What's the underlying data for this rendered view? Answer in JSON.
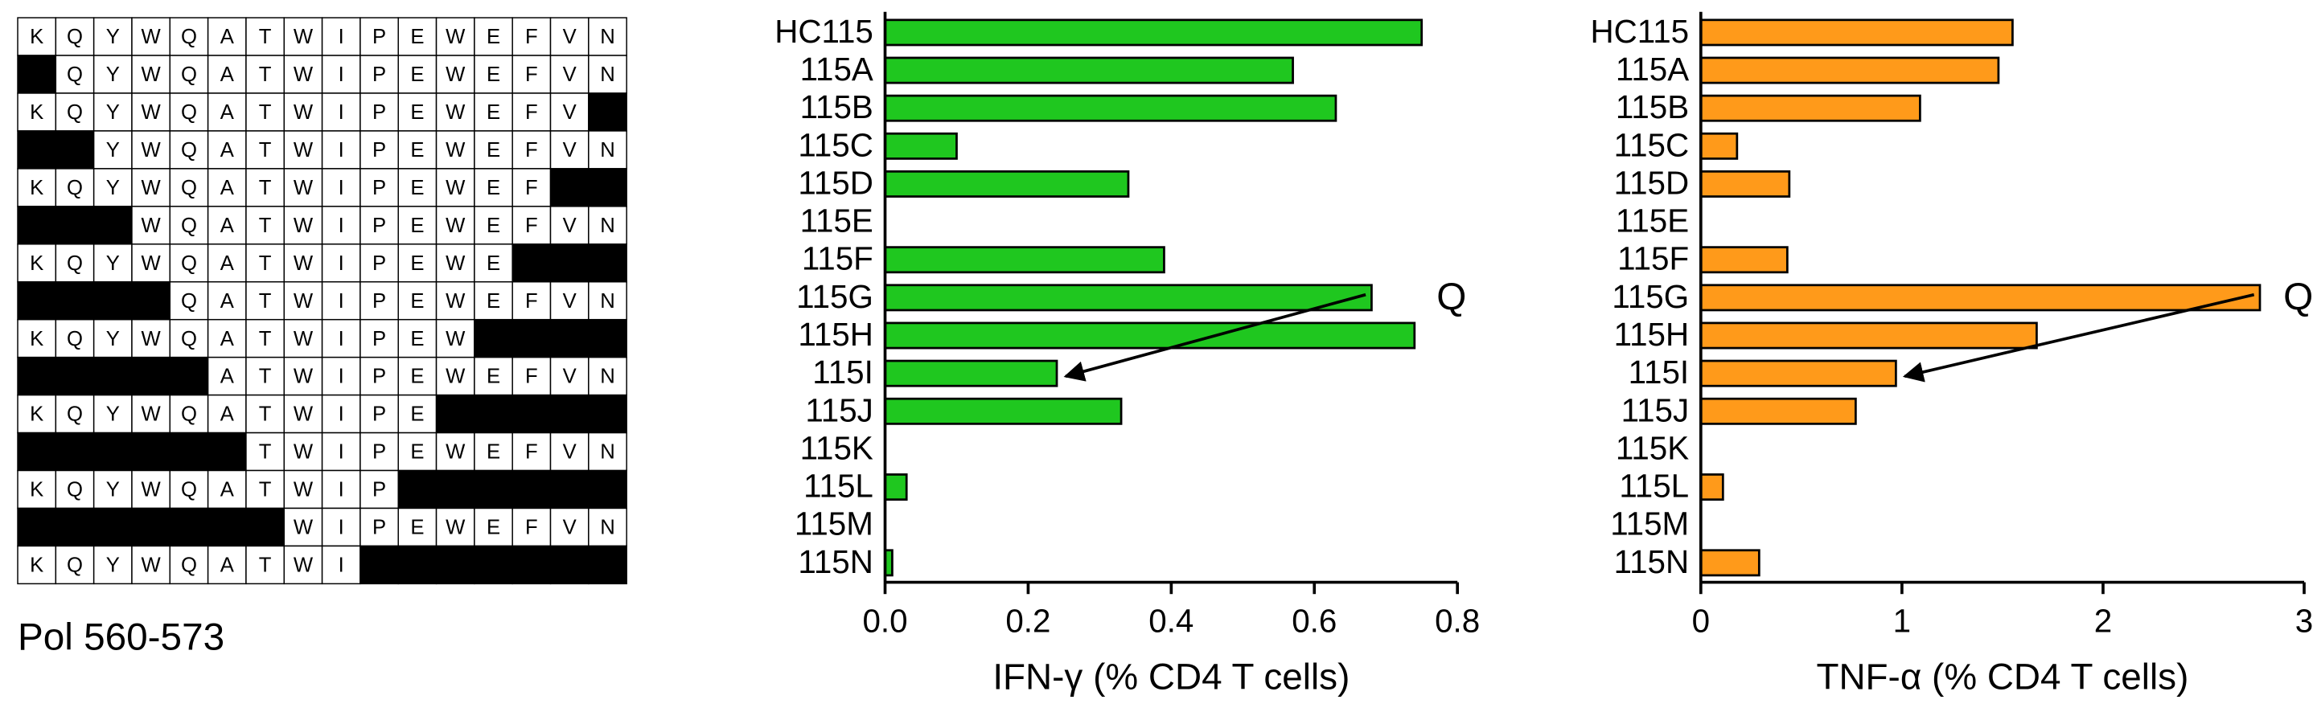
{
  "peptide_grid": {
    "caption": "Pol 560-573",
    "rows": [
      [
        "K",
        "Q",
        "Y",
        "W",
        "Q",
        "A",
        "T",
        "W",
        "I",
        "P",
        "E",
        "W",
        "E",
        "F",
        "V",
        "N"
      ],
      [
        null,
        "Q",
        "Y",
        "W",
        "Q",
        "A",
        "T",
        "W",
        "I",
        "P",
        "E",
        "W",
        "E",
        "F",
        "V",
        "N"
      ],
      [
        "K",
        "Q",
        "Y",
        "W",
        "Q",
        "A",
        "T",
        "W",
        "I",
        "P",
        "E",
        "W",
        "E",
        "F",
        "V",
        null
      ],
      [
        null,
        null,
        "Y",
        "W",
        "Q",
        "A",
        "T",
        "W",
        "I",
        "P",
        "E",
        "W",
        "E",
        "F",
        "V",
        "N"
      ],
      [
        "K",
        "Q",
        "Y",
        "W",
        "Q",
        "A",
        "T",
        "W",
        "I",
        "P",
        "E",
        "W",
        "E",
        "F",
        null,
        null
      ],
      [
        null,
        null,
        null,
        "W",
        "Q",
        "A",
        "T",
        "W",
        "I",
        "P",
        "E",
        "W",
        "E",
        "F",
        "V",
        "N"
      ],
      [
        "K",
        "Q",
        "Y",
        "W",
        "Q",
        "A",
        "T",
        "W",
        "I",
        "P",
        "E",
        "W",
        "E",
        null,
        null,
        null
      ],
      [
        null,
        null,
        null,
        null,
        "Q",
        "A",
        "T",
        "W",
        "I",
        "P",
        "E",
        "W",
        "E",
        "F",
        "V",
        "N"
      ],
      [
        "K",
        "Q",
        "Y",
        "W",
        "Q",
        "A",
        "T",
        "W",
        "I",
        "P",
        "E",
        "W",
        null,
        null,
        null,
        null
      ],
      [
        null,
        null,
        null,
        null,
        null,
        "A",
        "T",
        "W",
        "I",
        "P",
        "E",
        "W",
        "E",
        "F",
        "V",
        "N"
      ],
      [
        "K",
        "Q",
        "Y",
        "W",
        "Q",
        "A",
        "T",
        "W",
        "I",
        "P",
        "E",
        null,
        null,
        null,
        null,
        null
      ],
      [
        null,
        null,
        null,
        null,
        null,
        null,
        "T",
        "W",
        "I",
        "P",
        "E",
        "W",
        "E",
        "F",
        "V",
        "N"
      ],
      [
        "K",
        "Q",
        "Y",
        "W",
        "Q",
        "A",
        "T",
        "W",
        "I",
        "P",
        null,
        null,
        null,
        null,
        null,
        null
      ],
      [
        null,
        null,
        null,
        null,
        null,
        null,
        null,
        "W",
        "I",
        "P",
        "E",
        "W",
        "E",
        "F",
        "V",
        "N"
      ],
      [
        "K",
        "Q",
        "Y",
        "W",
        "Q",
        "A",
        "T",
        "W",
        "I",
        null,
        null,
        null,
        null,
        null,
        null,
        null
      ]
    ]
  },
  "chart_data": [
    {
      "type": "hbar",
      "x_label": "IFN-γ (% CD4 T cells)",
      "categories": [
        "HC115",
        "115A",
        "115B",
        "115C",
        "115D",
        "115E",
        "115F",
        "115G",
        "115H",
        "115I",
        "115J",
        "115K",
        "115L",
        "115M",
        "115N"
      ],
      "values": [
        0.75,
        0.57,
        0.63,
        0.1,
        0.34,
        0,
        0.39,
        0.68,
        0.74,
        0.24,
        0.33,
        0,
        0.03,
        0,
        0.01
      ],
      "color": "#1fc71f",
      "xlim": [
        0,
        0.8
      ],
      "xticks": [
        {
          "value": 0,
          "label": "0.0"
        },
        0.2,
        0.4,
        0.6,
        0.8
      ],
      "annotation": "Q"
    },
    {
      "type": "hbar",
      "x_label": "TNF-α (% CD4 T cells)",
      "categories": [
        "HC115",
        "115A",
        "115B",
        "115C",
        "115D",
        "115E",
        "115F",
        "115G",
        "115H",
        "115I",
        "115J",
        "115K",
        "115L",
        "115M",
        "115N"
      ],
      "values": [
        1.55,
        1.48,
        1.09,
        0.18,
        0.44,
        0,
        0.43,
        2.78,
        1.67,
        0.97,
        0.77,
        0,
        0.11,
        0,
        0.29
      ],
      "color": "#ff9a1a",
      "xlim": [
        0,
        3
      ],
      "xticks": [
        0,
        1,
        2,
        3
      ],
      "annotation": "Q"
    }
  ]
}
